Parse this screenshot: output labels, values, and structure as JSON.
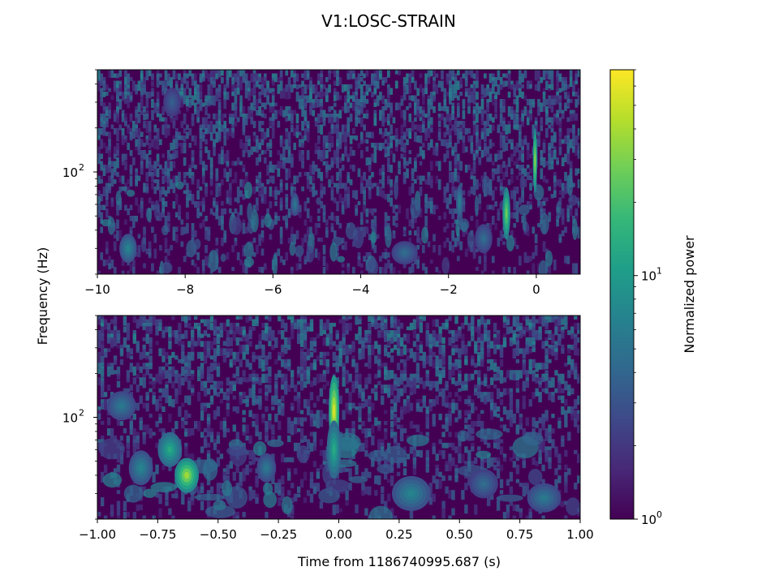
{
  "figure": {
    "title": "V1:LOSC-STRAIN",
    "ylabel": "Frequency (Hz)",
    "xlabel": "Time from 1186740995.687 (s)"
  },
  "colormap": [
    "#440154",
    "#482878",
    "#3e4989",
    "#31688e",
    "#26828e",
    "#1f9e89",
    "#35b779",
    "#6ece58",
    "#b5de2b",
    "#fde725"
  ],
  "chart_data": [
    {
      "type": "heatmap",
      "name": "top-panel",
      "xlim": [
        -10,
        1
      ],
      "ylim": [
        20,
        500
      ],
      "yscale": "log",
      "xticks": [
        -10,
        -8,
        -6,
        -4,
        -2,
        0
      ],
      "xtick_labels": [
        "−10",
        "−8",
        "−6",
        "−4",
        "−2",
        "0"
      ],
      "yticks": [
        100
      ],
      "ytick_label_base": "10",
      "ytick_label_exp": "2",
      "blobs": [
        {
          "t": -0.03,
          "f": 120,
          "dt": 0.05,
          "df": 0.22,
          "p": 0.85
        },
        {
          "t": -0.68,
          "f": 52,
          "dt": 0.09,
          "df": 0.18,
          "p": 0.78
        },
        {
          "t": -1.75,
          "f": 62,
          "dt": 0.08,
          "df": 0.12,
          "p": 0.45
        },
        {
          "t": -5.5,
          "f": 60,
          "dt": 0.1,
          "df": 0.08,
          "p": 0.4
        },
        {
          "t": -9.3,
          "f": 30,
          "dt": 0.2,
          "df": 0.1,
          "p": 0.45
        },
        {
          "t": -3.0,
          "f": 28,
          "dt": 0.3,
          "df": 0.08,
          "p": 0.35
        },
        {
          "t": -1.2,
          "f": 35,
          "dt": 0.2,
          "df": 0.1,
          "p": 0.35
        },
        {
          "t": -8.3,
          "f": 300,
          "dt": 0.2,
          "df": 0.1,
          "p": 0.3
        }
      ],
      "noise_seed": 7
    },
    {
      "type": "heatmap",
      "name": "bottom-panel",
      "xlim": [
        -1,
        1
      ],
      "ylim": [
        20,
        500
      ],
      "yscale": "log",
      "xticks": [
        -1.0,
        -0.75,
        -0.5,
        -0.25,
        0.0,
        0.25,
        0.5,
        0.75,
        1.0
      ],
      "xtick_labels": [
        "−1.00",
        "−0.75",
        "−0.50",
        "−0.25",
        "0.00",
        "0.25",
        "0.50",
        "0.75",
        "1.00"
      ],
      "yticks": [
        100
      ],
      "ytick_label_base": "10",
      "ytick_label_exp": "2",
      "blobs": [
        {
          "t": -0.02,
          "f": 110,
          "dt": 0.022,
          "df": 0.25,
          "p": 0.95
        },
        {
          "t": -0.02,
          "f": 60,
          "dt": 0.03,
          "df": 0.2,
          "p": 0.6
        },
        {
          "t": -0.63,
          "f": 40,
          "dt": 0.05,
          "df": 0.12,
          "p": 0.85
        },
        {
          "t": -0.7,
          "f": 60,
          "dt": 0.05,
          "df": 0.12,
          "p": 0.6
        },
        {
          "t": -0.82,
          "f": 45,
          "dt": 0.05,
          "df": 0.12,
          "p": 0.45
        },
        {
          "t": -0.9,
          "f": 120,
          "dt": 0.06,
          "df": 0.1,
          "p": 0.4
        },
        {
          "t": 0.3,
          "f": 30,
          "dt": 0.08,
          "df": 0.12,
          "p": 0.45
        },
        {
          "t": 0.85,
          "f": 28,
          "dt": 0.07,
          "df": 0.1,
          "p": 0.4
        },
        {
          "t": -0.3,
          "f": 45,
          "dt": 0.04,
          "df": 0.1,
          "p": 0.4
        },
        {
          "t": 0.6,
          "f": 35,
          "dt": 0.06,
          "df": 0.1,
          "p": 0.35
        }
      ],
      "noise_seed": 13
    }
  ],
  "colorbar": {
    "label": "Normalized power",
    "scale": "log",
    "range": [
      1,
      70
    ],
    "tick_label_base": "10",
    "ticks": [
      {
        "value": 1,
        "exp": "0"
      },
      {
        "value": 10,
        "exp": "1"
      }
    ]
  }
}
